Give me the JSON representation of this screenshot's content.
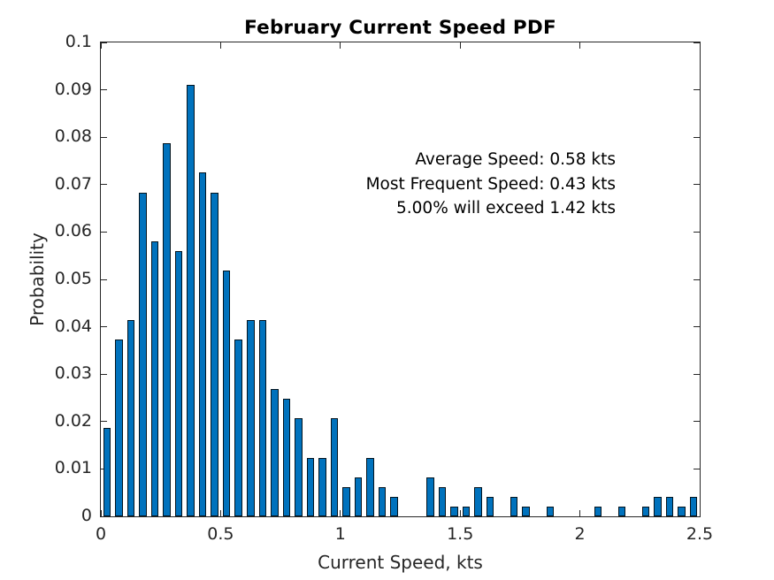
{
  "chart_data": {
    "type": "bar",
    "subtype": "histogram-pdf",
    "title": "February Current Speed PDF",
    "xlabel": "Current Speed, kts",
    "ylabel": "Probability",
    "xlim": [
      0,
      2.5
    ],
    "ylim": [
      0,
      0.1
    ],
    "grid": false,
    "box": true,
    "tick_direction": "in",
    "x_tick_values": [
      0,
      0.5,
      1,
      1.5,
      2,
      2.5
    ],
    "x_tick_labels": [
      "0",
      "0.5",
      "1",
      "1.5",
      "2",
      "2.5"
    ],
    "y_tick_values": [
      0,
      0.01,
      0.02,
      0.03,
      0.04,
      0.05,
      0.06,
      0.07,
      0.08,
      0.09,
      0.1
    ],
    "y_tick_labels": [
      "0",
      "0.01",
      "0.02",
      "0.03",
      "0.04",
      "0.05",
      "0.06",
      "0.07",
      "0.08",
      "0.09",
      "0.1"
    ],
    "bin_width": 0.05,
    "bin_centers": [
      0.025,
      0.075,
      0.125,
      0.175,
      0.225,
      0.275,
      0.325,
      0.375,
      0.425,
      0.475,
      0.525,
      0.575,
      0.625,
      0.675,
      0.725,
      0.775,
      0.825,
      0.875,
      0.925,
      0.975,
      1.025,
      1.075,
      1.125,
      1.175,
      1.225,
      1.275,
      1.325,
      1.375,
      1.425,
      1.475,
      1.525,
      1.575,
      1.625,
      1.675,
      1.725,
      1.775,
      1.825,
      1.875,
      1.925,
      1.975,
      2.025,
      2.075,
      2.125,
      2.175,
      2.225,
      2.275,
      2.325,
      2.375,
      2.425,
      2.475
    ],
    "probabilities": [
      0.0186,
      0.0373,
      0.0414,
      0.0683,
      0.058,
      0.0787,
      0.0559,
      0.0911,
      0.0725,
      0.0683,
      0.0518,
      0.0373,
      0.0414,
      0.0414,
      0.0269,
      0.0248,
      0.0207,
      0.0124,
      0.0124,
      0.0207,
      0.0062,
      0.0083,
      0.0124,
      0.0062,
      0.0041,
      0,
      0,
      0.0083,
      0.0062,
      0.0021,
      0.0021,
      0.0062,
      0.0041,
      0,
      0.0041,
      0.0021,
      0,
      0.0021,
      0,
      0,
      0,
      0.0021,
      0,
      0.0021,
      0,
      0.0021,
      0.0041,
      0.0041,
      0.0021,
      0.0041
    ],
    "annotations": [
      "Average Speed: 0.58 kts",
      "Most Frequent Speed: 0.43 kts",
      "5.00% will exceed 1.42 kts"
    ],
    "legend": null,
    "colors": {
      "bar_fill": "#0072BD",
      "bar_edge": "#03141f",
      "axis": "#262626",
      "tick_label": "#262626",
      "title_text": "#000000",
      "annotation_text": "#000000",
      "background": "#ffffff"
    }
  }
}
